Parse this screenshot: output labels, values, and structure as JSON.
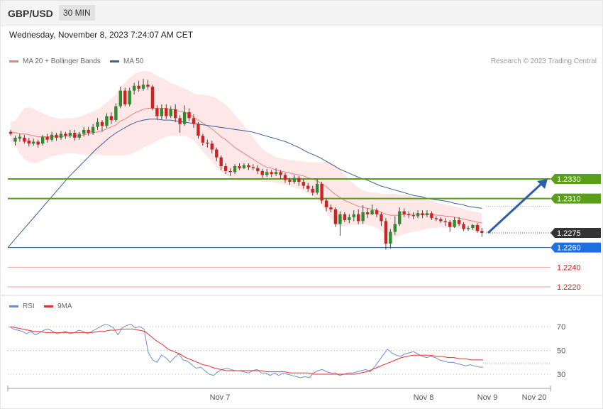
{
  "header": {
    "pair": "GBP/USD",
    "timeframe": "30 MIN",
    "timestamp": "Wednesday, November 8, 2023 7:24:07 AM CET"
  },
  "legend": {
    "ma20_label": "MA 20 + Bollinger Bands",
    "ma50_label": "MA 50",
    "ma20_color": "#f08080",
    "ma50_color": "#3a5f9a",
    "copyright": "Research © 2023 Trading Central"
  },
  "chart_data": [
    {
      "type": "candlestick",
      "title": "",
      "price_ylim": [
        1.2212,
        1.244
      ],
      "x_tick_labels": [
        "Nov 7",
        "Nov 8",
        "Nov 9",
        "Nov 20"
      ],
      "levels": [
        {
          "value": 1.233,
          "label": "1.2330",
          "kind": "resistance",
          "color": "#5a9e1a"
        },
        {
          "value": 1.231,
          "label": "1.2310",
          "kind": "resistance",
          "color": "#5a9e1a"
        },
        {
          "value": 1.2275,
          "label": "1.2275",
          "kind": "last",
          "color": "#333333"
        },
        {
          "value": 1.226,
          "label": "1.2260",
          "kind": "pivot",
          "color": "#1f6fe0"
        },
        {
          "value": 1.224,
          "label": "1.2240",
          "kind": "support",
          "color": "#d81b1b"
        },
        {
          "value": 1.222,
          "label": "1.2220",
          "kind": "support",
          "color": "#d81b1b"
        }
      ],
      "arrow": {
        "from": 1.2275,
        "to": 1.233,
        "color": "#2d5fa8"
      },
      "candles": [
        [
          1.2378,
          1.2376,
          1.238,
          1.2374
        ],
        [
          1.2368,
          1.2372,
          1.2374,
          1.2364
        ],
        [
          1.2371,
          1.2373,
          1.2376,
          1.2368
        ],
        [
          1.2372,
          1.2368,
          1.2375,
          1.2366
        ],
        [
          1.2369,
          1.2366,
          1.2372,
          1.2363
        ],
        [
          1.2366,
          1.2368,
          1.2371,
          1.2364
        ],
        [
          1.2368,
          1.2365,
          1.237,
          1.2362
        ],
        [
          1.2366,
          1.2373,
          1.2375,
          1.2364
        ],
        [
          1.2373,
          1.237,
          1.2376,
          1.2367
        ],
        [
          1.237,
          1.2375,
          1.2378,
          1.2368
        ],
        [
          1.2375,
          1.2372,
          1.2377,
          1.2369
        ],
        [
          1.2372,
          1.2376,
          1.2379,
          1.237
        ],
        [
          1.2376,
          1.2374,
          1.2378,
          1.2371
        ],
        [
          1.2374,
          1.2377,
          1.238,
          1.2372
        ],
        [
          1.2377,
          1.2372,
          1.238,
          1.2369
        ],
        [
          1.2372,
          1.2376,
          1.2378,
          1.237
        ],
        [
          1.2376,
          1.238,
          1.2383,
          1.2373
        ],
        [
          1.238,
          1.2377,
          1.2383,
          1.2374
        ],
        [
          1.2377,
          1.2383,
          1.2386,
          1.2375
        ],
        [
          1.2383,
          1.2388,
          1.2392,
          1.238
        ],
        [
          1.2388,
          1.2384,
          1.239,
          1.2378
        ],
        [
          1.2384,
          1.2394,
          1.2397,
          1.2382
        ],
        [
          1.2394,
          1.239,
          1.2398,
          1.2386
        ],
        [
          1.239,
          1.2404,
          1.2407,
          1.2388
        ],
        [
          1.2404,
          1.242,
          1.2424,
          1.2402
        ],
        [
          1.242,
          1.2406,
          1.2423,
          1.2404
        ],
        [
          1.2406,
          1.242,
          1.2423,
          1.2404
        ],
        [
          1.242,
          1.2425,
          1.2428,
          1.2416
        ],
        [
          1.2425,
          1.2422,
          1.243,
          1.2419
        ],
        [
          1.2422,
          1.2426,
          1.2432,
          1.242
        ],
        [
          1.2426,
          1.2424,
          1.2431,
          1.2421
        ],
        [
          1.2424,
          1.2402,
          1.2426,
          1.24
        ],
        [
          1.2402,
          1.2394,
          1.2405,
          1.239
        ],
        [
          1.2394,
          1.2402,
          1.2406,
          1.2391
        ],
        [
          1.2402,
          1.2394,
          1.2406,
          1.2391
        ],
        [
          1.2394,
          1.2401,
          1.2404,
          1.2392
        ],
        [
          1.2401,
          1.2392,
          1.2406,
          1.2388
        ],
        [
          1.2392,
          1.2386,
          1.2395,
          1.2377
        ],
        [
          1.2386,
          1.2398,
          1.2405,
          1.2384
        ],
        [
          1.2398,
          1.2392,
          1.2402,
          1.2389
        ],
        [
          1.2392,
          1.2386,
          1.2396,
          1.2382
        ],
        [
          1.2386,
          1.2374,
          1.2388,
          1.2371
        ],
        [
          1.2374,
          1.2367,
          1.2376,
          1.2364
        ],
        [
          1.2367,
          1.2366,
          1.237,
          1.2362
        ],
        [
          1.2366,
          1.236,
          1.2369,
          1.2356
        ],
        [
          1.236,
          1.2352,
          1.2362,
          1.2348
        ],
        [
          1.2352,
          1.2343,
          1.2354,
          1.2339
        ],
        [
          1.2343,
          1.2338,
          1.2346,
          1.2335
        ],
        [
          1.2338,
          1.2337,
          1.2341,
          1.2333
        ],
        [
          1.2337,
          1.2343,
          1.2345,
          1.2335
        ],
        [
          1.2343,
          1.2341,
          1.2346,
          1.2339
        ],
        [
          1.2341,
          1.2344,
          1.2346,
          1.234
        ],
        [
          1.2344,
          1.2342,
          1.2346,
          1.2339
        ],
        [
          1.2342,
          1.2341,
          1.2345,
          1.2339
        ],
        [
          1.2341,
          1.2338,
          1.2344,
          1.2335
        ],
        [
          1.2338,
          1.2334,
          1.234,
          1.2331
        ],
        [
          1.2334,
          1.2337,
          1.234,
          1.2332
        ],
        [
          1.2337,
          1.2335,
          1.2339,
          1.2332
        ],
        [
          1.2335,
          1.2337,
          1.2341,
          1.2333
        ],
        [
          1.2337,
          1.2334,
          1.2339,
          1.233
        ],
        [
          1.2334,
          1.2329,
          1.2336,
          1.2326
        ],
        [
          1.2329,
          1.2327,
          1.2331,
          1.2324
        ],
        [
          1.2327,
          1.2331,
          1.2334,
          1.2325
        ],
        [
          1.2331,
          1.2327,
          1.2333,
          1.2323
        ],
        [
          1.2327,
          1.2323,
          1.233,
          1.232
        ],
        [
          1.2323,
          1.232,
          1.2326,
          1.2317
        ],
        [
          1.232,
          1.2316,
          1.2323,
          1.2313
        ],
        [
          1.2316,
          1.2325,
          1.233,
          1.2314
        ],
        [
          1.2325,
          1.2308,
          1.2327,
          1.2305
        ],
        [
          1.2308,
          1.2301,
          1.231,
          1.2297
        ],
        [
          1.2301,
          1.2299,
          1.2304,
          1.2296
        ],
        [
          1.2299,
          1.2284,
          1.2301,
          1.2281
        ],
        [
          1.2284,
          1.2294,
          1.2297,
          1.2272
        ],
        [
          1.2294,
          1.2288,
          1.2296,
          1.2286
        ],
        [
          1.2288,
          1.2291,
          1.2294,
          1.2285
        ],
        [
          1.2291,
          1.2294,
          1.2298,
          1.2287
        ],
        [
          1.2294,
          1.2287,
          1.2299,
          1.2284
        ],
        [
          1.2287,
          1.2296,
          1.2303,
          1.2284
        ],
        [
          1.2296,
          1.2294,
          1.23,
          1.229
        ],
        [
          1.2294,
          1.2298,
          1.2304,
          1.2293
        ],
        [
          1.2298,
          1.2294,
          1.23,
          1.2291
        ],
        [
          1.2294,
          1.2287,
          1.2296,
          1.2282
        ],
        [
          1.2287,
          1.2264,
          1.229,
          1.2258
        ],
        [
          1.2264,
          1.2276,
          1.2279,
          1.2259
        ],
        [
          1.2276,
          1.2284,
          1.2292,
          1.2273
        ],
        [
          1.2284,
          1.2297,
          1.2301,
          1.2282
        ],
        [
          1.2297,
          1.2294,
          1.23,
          1.2291
        ],
        [
          1.2294,
          1.2293,
          1.2297,
          1.229
        ],
        [
          1.2293,
          1.2292,
          1.2296,
          1.2289
        ],
        [
          1.2292,
          1.2295,
          1.2298,
          1.229
        ],
        [
          1.2295,
          1.2293,
          1.2298,
          1.229
        ],
        [
          1.2293,
          1.2295,
          1.2298,
          1.2291
        ],
        [
          1.2295,
          1.229,
          1.2297,
          1.2288
        ],
        [
          1.229,
          1.2289,
          1.2292,
          1.2287
        ],
        [
          1.2289,
          1.2287,
          1.2291,
          1.2285
        ],
        [
          1.2287,
          1.2286,
          1.229,
          1.2282
        ],
        [
          1.2286,
          1.2281,
          1.2288,
          1.2276
        ],
        [
          1.2281,
          1.2288,
          1.2291,
          1.228
        ],
        [
          1.2288,
          1.2284,
          1.2291,
          1.2282
        ],
        [
          1.2284,
          1.2279,
          1.2286,
          1.2277
        ],
        [
          1.2279,
          1.228,
          1.2282,
          1.2277
        ],
        [
          1.228,
          1.2283,
          1.2284,
          1.2278
        ],
        [
          1.2283,
          1.2277,
          1.2285,
          1.2275
        ],
        [
          1.2277,
          1.2275,
          1.228,
          1.2271
        ]
      ],
      "ma20": [
        1.2378,
        1.2377,
        1.2376,
        1.2376,
        1.2375,
        1.2374,
        1.2373,
        1.2373,
        1.2373,
        1.2373,
        1.2373,
        1.2373,
        1.2374,
        1.2374,
        1.2374,
        1.2374,
        1.2375,
        1.2376,
        1.2377,
        1.2378,
        1.2379,
        1.2381,
        1.2383,
        1.2385,
        1.2389,
        1.2391,
        1.2394,
        1.2397,
        1.2399,
        1.2401,
        1.2402,
        1.2402,
        1.2402,
        1.2402,
        1.2402,
        1.2401,
        1.24,
        1.2399,
        1.2398,
        1.2396,
        1.2393,
        1.239,
        1.2387,
        1.2384,
        1.2381,
        1.2377,
        1.2373,
        1.237,
        1.2366,
        1.2362,
        1.2359,
        1.2356,
        1.2353,
        1.235,
        1.2347,
        1.2344,
        1.2342,
        1.2341,
        1.2339,
        1.2338,
        1.2337,
        1.2336,
        1.2335,
        1.2334,
        1.2333,
        1.2331,
        1.233,
        1.2328,
        1.2325,
        1.2322,
        1.2318,
        1.2314,
        1.2311,
        1.2308,
        1.2306,
        1.2304,
        1.2302,
        1.2301,
        1.23,
        1.2299,
        1.2298,
        1.2296,
        1.2294,
        1.2293,
        1.2293,
        1.2293,
        1.2294,
        1.2294,
        1.2294,
        1.2294,
        1.2294,
        1.2294,
        1.2294,
        1.2293,
        1.2293,
        1.2292,
        1.2292,
        1.2291,
        1.229,
        1.2289,
        1.2288,
        1.2287,
        1.2286,
        1.2285
      ],
      "bb_width": [
        0.001,
        0.0012,
        0.002,
        0.0026,
        0.0028,
        0.0028,
        0.0026,
        0.0024,
        0.0022,
        0.002,
        0.0019,
        0.0018,
        0.0018,
        0.0018,
        0.0018,
        0.0019,
        0.002,
        0.0021,
        0.0022,
        0.0023,
        0.0025,
        0.0027,
        0.0029,
        0.0031,
        0.0035,
        0.0037,
        0.0039,
        0.004,
        0.004,
        0.0039,
        0.0038,
        0.0036,
        0.0033,
        0.0031,
        0.0029,
        0.0027,
        0.0026,
        0.0025,
        0.0024,
        0.0024,
        0.0024,
        0.0026,
        0.0029,
        0.0031,
        0.0033,
        0.0035,
        0.0036,
        0.0036,
        0.0035,
        0.0033,
        0.0031,
        0.0028,
        0.0025,
        0.0022,
        0.0019,
        0.0017,
        0.0015,
        0.0014,
        0.0013,
        0.0013,
        0.0013,
        0.0013,
        0.0014,
        0.0014,
        0.0015,
        0.0016,
        0.0017,
        0.0019,
        0.0022,
        0.0026,
        0.0029,
        0.003,
        0.0029,
        0.0026,
        0.0023,
        0.0021,
        0.0019,
        0.0017,
        0.0017,
        0.0017,
        0.0018,
        0.0019,
        0.0021,
        0.0022,
        0.0022,
        0.0021,
        0.002,
        0.0019,
        0.0018,
        0.0017,
        0.0016,
        0.0015,
        0.0014,
        0.0013,
        0.0012,
        0.0012,
        0.0011,
        0.0011,
        0.0011,
        0.001,
        0.001,
        0.001,
        0.001,
        0.001
      ],
      "ma50": [
        1.226,
        1.2268,
        1.2276,
        1.2284,
        1.2292,
        1.23,
        1.2308,
        1.2316,
        1.2324,
        1.2332,
        1.2339,
        1.2346,
        1.2353,
        1.236,
        1.2366,
        1.2372,
        1.2377,
        1.2381,
        1.2385,
        1.2388,
        1.239,
        1.2391,
        1.2391,
        1.239,
        1.239,
        1.2389,
        1.2388,
        1.2387,
        1.2386,
        1.2385,
        1.2384,
        1.2383,
        1.2382,
        1.2381,
        1.238,
        1.2379,
        1.2378,
        1.2376,
        1.2374,
        1.2372,
        1.237,
        1.2368,
        1.2365,
        1.2362,
        1.2358,
        1.2355,
        1.2352,
        1.2348,
        1.2344,
        1.234,
        1.2337,
        1.2334,
        1.2331,
        1.2329,
        1.2326,
        1.2323,
        1.2321,
        1.2319,
        1.2317,
        1.2315,
        1.2313,
        1.2312,
        1.231,
        1.2309,
        1.2308,
        1.2307,
        1.2305,
        1.2304,
        1.2302,
        1.2301,
        1.23
      ],
      "rsi_ticks": [
        70,
        50,
        30
      ],
      "rsi_ylim": [
        10,
        80
      ],
      "rsi": [
        70,
        68,
        67,
        66,
        64,
        66,
        63,
        65,
        67,
        68,
        66,
        64,
        65,
        66,
        64,
        65,
        67,
        66,
        64,
        66,
        68,
        70,
        72,
        71,
        69,
        63,
        69,
        71,
        72,
        69,
        70,
        68,
        48,
        42,
        40,
        46,
        44,
        40,
        44,
        47,
        42,
        41,
        38,
        35,
        36,
        33,
        30,
        29,
        32,
        34,
        35,
        34,
        33,
        33,
        32,
        31,
        33,
        34,
        31,
        31,
        29,
        31,
        29,
        31,
        30,
        29,
        28,
        27,
        28,
        27,
        31,
        33,
        34,
        32,
        31,
        31,
        29,
        30,
        31,
        31,
        32,
        33,
        34,
        32,
        36,
        41,
        46,
        51,
        48,
        46,
        45,
        47,
        48,
        49,
        47,
        45,
        44,
        45,
        44,
        42,
        41,
        40,
        40,
        39,
        38,
        37,
        38,
        37,
        36,
        36
      ],
      "rsi_ma9": [
        70,
        69,
        68,
        67,
        66,
        66,
        65,
        65,
        65,
        65,
        65,
        65,
        65,
        65,
        65,
        66,
        66,
        67,
        67,
        68,
        68,
        68,
        67,
        66,
        62,
        58,
        55,
        51,
        49,
        47,
        44,
        42,
        40,
        38,
        37,
        35,
        34,
        33,
        33,
        33,
        33,
        33,
        33,
        33,
        32,
        32,
        32,
        32,
        31,
        31,
        31,
        31,
        30,
        30,
        30,
        30,
        30,
        30,
        30,
        30,
        31,
        32,
        34,
        36,
        38,
        40,
        42,
        44,
        45,
        46,
        46,
        46,
        46,
        45,
        45,
        44,
        44,
        43,
        43,
        42,
        42,
        42
      ]
    }
  ]
}
